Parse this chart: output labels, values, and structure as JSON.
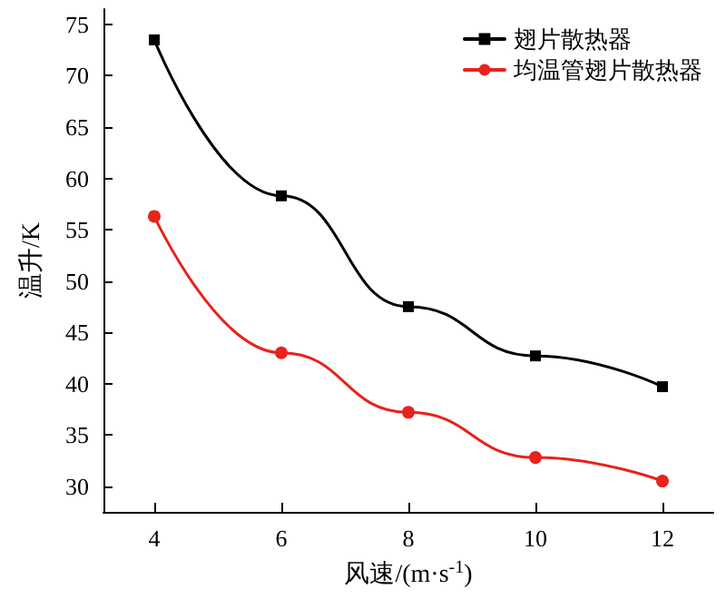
{
  "chart_data": {
    "type": "line",
    "xlabel": "风速/(m·s$^{-1}$)",
    "ylabel": "温升/K",
    "x": [
      4,
      6,
      8,
      10,
      12
    ],
    "series": [
      {
        "name": "翅片散热器",
        "color": "#000000",
        "marker": "square",
        "values": [
          73.5,
          58.3,
          47.5,
          42.7,
          39.7
        ]
      },
      {
        "name": "均温管翅片散热器",
        "color": "#e8221c",
        "marker": "circle",
        "values": [
          56.3,
          43.0,
          37.2,
          32.8,
          30.5
        ]
      }
    ],
    "xlim": [
      3.2,
      12.8
    ],
    "xticks": [
      4,
      6,
      8,
      10,
      12
    ],
    "ylim": [
      27.5,
      76.5
    ],
    "yticks": [
      30,
      35,
      40,
      45,
      50,
      55,
      60,
      65,
      70,
      75
    ],
    "grid": false,
    "legend": "top right",
    "line_style": "solid"
  }
}
